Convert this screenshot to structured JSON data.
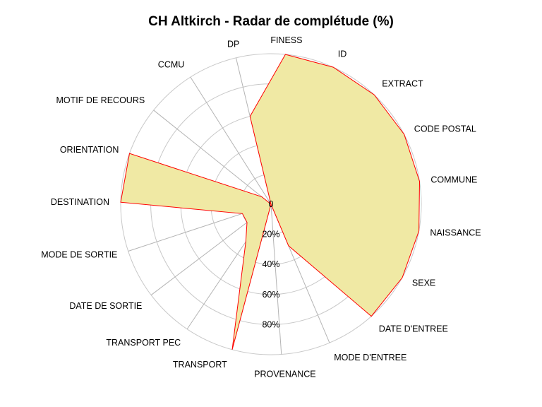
{
  "chart_data": {
    "type": "radar",
    "title": "CH Altkirch - Radar de complétude (%)",
    "categories": [
      "FINESS",
      "ID",
      "EXTRACT",
      "CODE POSTAL",
      "COMMUNE",
      "NAISSANCE",
      "SEXE",
      "DATE D'ENTREE",
      "MODE D'ENTREE",
      "PROVENANCE",
      "TRANSPORT",
      "TRANSPORT PEC",
      "DATE DE SORTIE",
      "MODE DE SORTIE",
      "DESTINATION",
      "ORIENTATION",
      "MOTIF DE RECOURS",
      "CCMU",
      "DP"
    ],
    "values": [
      100,
      100,
      100,
      100,
      100,
      100,
      100,
      100,
      30,
      0,
      100,
      30,
      20,
      20,
      100,
      100,
      8,
      0,
      60
    ],
    "rlim": [
      0,
      100
    ],
    "ticks": [
      0,
      20,
      40,
      60,
      80
    ],
    "tick_labels": [
      "0",
      "20%",
      "40%",
      "60%",
      "80%"
    ],
    "grid": true,
    "colors": {
      "fill": "#f0e9a4",
      "line": "#ff0000",
      "grid": "#c8c8c8",
      "spoke": "#b4b4b4"
    }
  }
}
